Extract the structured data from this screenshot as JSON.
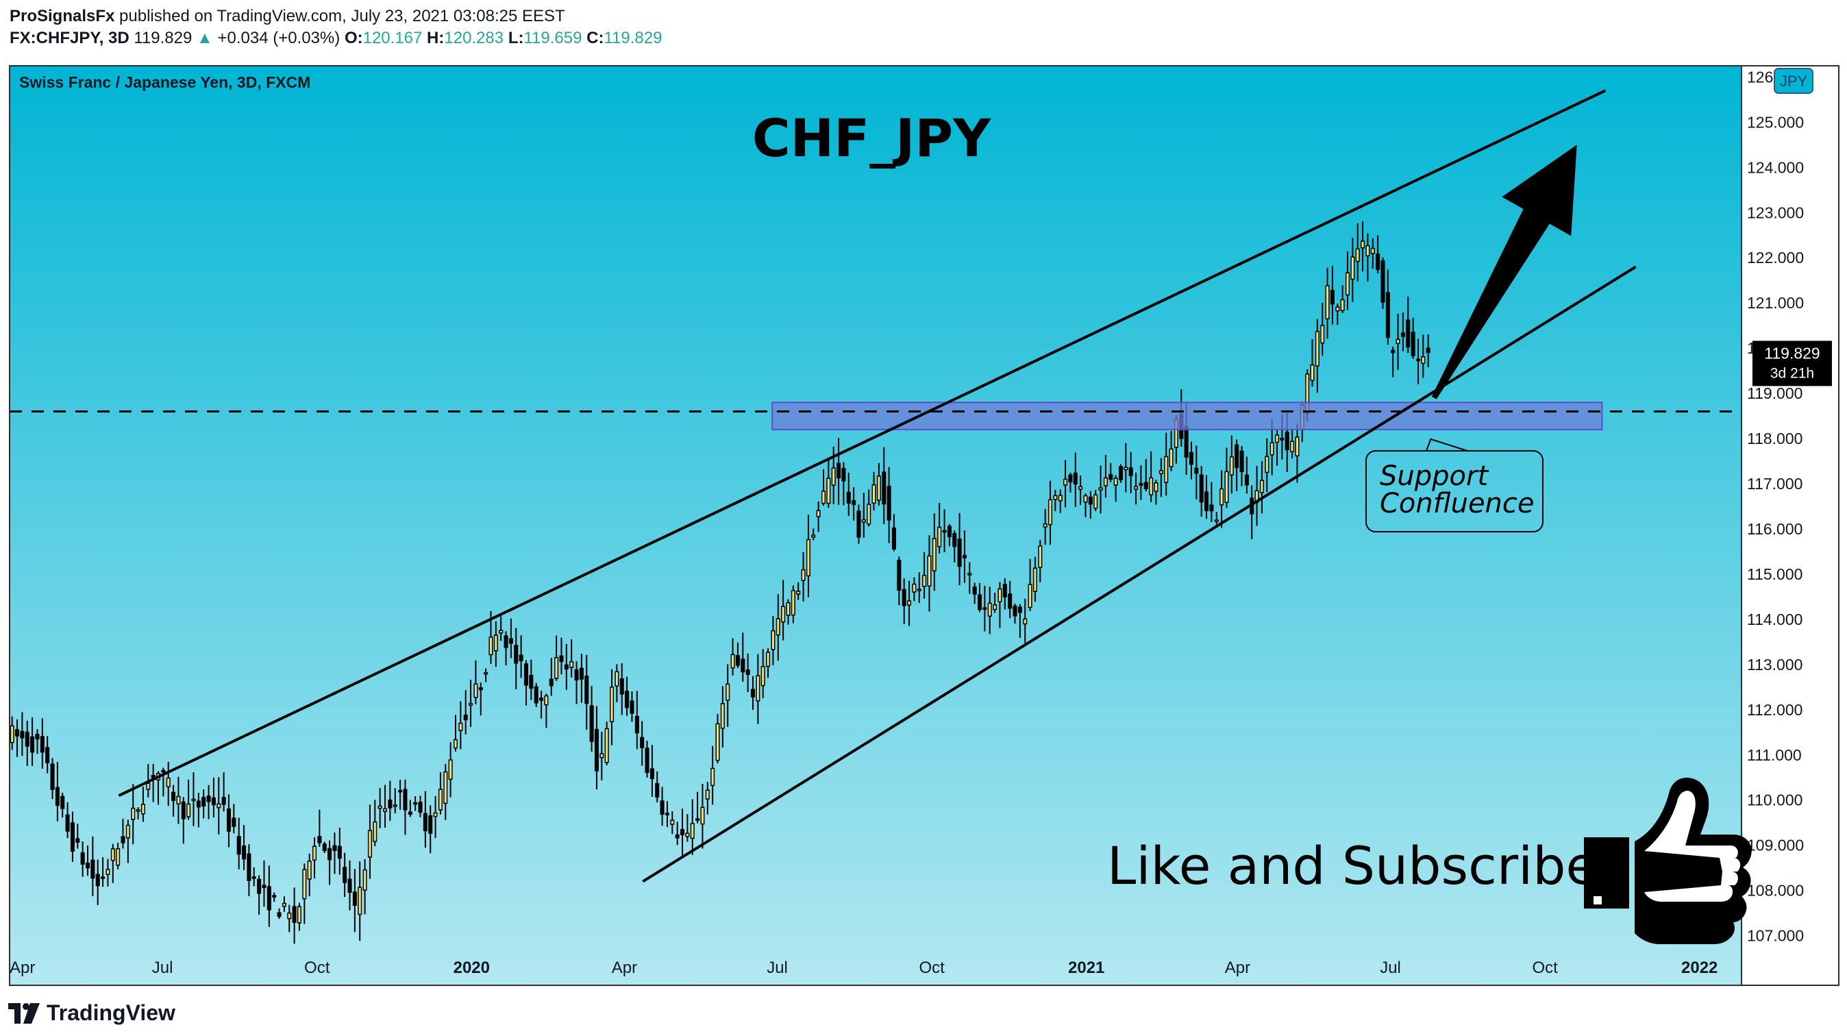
{
  "header": {
    "author": "ProSignalsFx",
    "published_text": "published on TradingView.com, July 23, 2021 03:08:25 EEST",
    "symbol": "FX:CHFJPY, 3D",
    "last": "119.829",
    "change_arrow": "▲",
    "change": "+0.034 (+0.03%)",
    "o_label": "O:",
    "o_value": "120.167",
    "h_label": "H:",
    "h_value": "120.283",
    "l_label": "L:",
    "l_value": "119.659",
    "c_label": "C:",
    "c_value": "119.829"
  },
  "chart_data": {
    "type": "candlestick",
    "title": "CHF_JPY",
    "subtitle": "Swiss Franc / Japanese Yen, 3D, FXCM",
    "currency_badge": "JPY",
    "ylim": [
      106.6,
      126.4
    ],
    "y_ticks": [
      107,
      108,
      109,
      110,
      111,
      112,
      113,
      114,
      115,
      116,
      117,
      118,
      119,
      120,
      121,
      122,
      123,
      124,
      125,
      126
    ],
    "y_tick_labels": [
      "107.000",
      "108.000",
      "109.000",
      "110.000",
      "111.000",
      "112.000",
      "113.000",
      "114.000",
      "115.000",
      "116.000",
      "117.000",
      "118.000",
      "119.000",
      "120.000",
      "121.000",
      "122.000",
      "123.000",
      "124.000",
      "125.000",
      "126.000"
    ],
    "x_range": [
      "2019-04-01",
      "2022-01-26"
    ],
    "x_ticks": [
      {
        "date": "2019-04-01",
        "label": "Apr",
        "bold": false
      },
      {
        "date": "2019-07-01",
        "label": "Jul",
        "bold": false
      },
      {
        "date": "2019-10-01",
        "label": "Oct",
        "bold": false
      },
      {
        "date": "2020-01-01",
        "label": "2020",
        "bold": true
      },
      {
        "date": "2020-04-01",
        "label": "Apr",
        "bold": false
      },
      {
        "date": "2020-07-01",
        "label": "Jul",
        "bold": false
      },
      {
        "date": "2020-10-01",
        "label": "Oct",
        "bold": false
      },
      {
        "date": "2021-01-01",
        "label": "2021",
        "bold": true
      },
      {
        "date": "2021-04-01",
        "label": "Apr",
        "bold": false
      },
      {
        "date": "2021-07-01",
        "label": "Jul",
        "bold": false
      },
      {
        "date": "2021-10-01",
        "label": "Oct",
        "bold": false
      },
      {
        "date": "2022-01-01",
        "label": "2022",
        "bold": true
      }
    ],
    "last_price": 119.829,
    "last_price_label": "119.829",
    "countdown_label": "3d 21h",
    "colors": {
      "bg_top": "#00b5d4",
      "bg_bottom": "#b3e8f1",
      "up_candle": "#f0e27a",
      "down_candle": "#000000",
      "zone_fill": "#6f7fd8",
      "zone_stroke": "#5b4ec8"
    },
    "anchors": [
      [
        "2019-04-01",
        111.5
      ],
      [
        "2019-04-20",
        111.2
      ],
      [
        "2019-05-08",
        109.2
      ],
      [
        "2019-05-25",
        108.1
      ],
      [
        "2019-06-12",
        109.4
      ],
      [
        "2019-06-28",
        110.7
      ],
      [
        "2019-07-15",
        109.8
      ],
      [
        "2019-08-05",
        110.0
      ],
      [
        "2019-08-28",
        108.0
      ],
      [
        "2019-09-20",
        107.3
      ],
      [
        "2019-09-30",
        109.2
      ],
      [
        "2019-10-15",
        108.7
      ],
      [
        "2019-10-25",
        107.5
      ],
      [
        "2019-11-05",
        109.6
      ],
      [
        "2019-11-20",
        110.1
      ],
      [
        "2019-12-10",
        109.4
      ],
      [
        "2019-12-25",
        111.6
      ],
      [
        "2020-01-08",
        112.6
      ],
      [
        "2020-01-18",
        114.0
      ],
      [
        "2020-01-30",
        113.0
      ],
      [
        "2020-02-12",
        112.2
      ],
      [
        "2020-02-25",
        113.2
      ],
      [
        "2020-03-08",
        112.6
      ],
      [
        "2020-03-18",
        110.6
      ],
      [
        "2020-03-28",
        112.8
      ],
      [
        "2020-04-08",
        111.7
      ],
      [
        "2020-04-20",
        110.3
      ],
      [
        "2020-05-01",
        109.4
      ],
      [
        "2020-05-10",
        109.1
      ],
      [
        "2020-05-22",
        110.2
      ],
      [
        "2020-06-05",
        113.2
      ],
      [
        "2020-06-18",
        112.4
      ],
      [
        "2020-07-02",
        113.9
      ],
      [
        "2020-07-14",
        114.6
      ],
      [
        "2020-07-25",
        116.2
      ],
      [
        "2020-08-06",
        117.5
      ],
      [
        "2020-08-20",
        116.0
      ],
      [
        "2020-09-02",
        117.2
      ],
      [
        "2020-09-15",
        114.4
      ],
      [
        "2020-09-28",
        114.8
      ],
      [
        "2020-10-08",
        116.1
      ],
      [
        "2020-10-22",
        115.2
      ],
      [
        "2020-11-01",
        114.2
      ],
      [
        "2020-11-12",
        114.6
      ],
      [
        "2020-11-26",
        114.0
      ],
      [
        "2020-12-08",
        116.2
      ],
      [
        "2020-12-22",
        117.1
      ],
      [
        "2021-01-05",
        116.6
      ],
      [
        "2021-01-20",
        117.3
      ],
      [
        "2021-02-05",
        116.9
      ],
      [
        "2021-02-18",
        117.3
      ],
      [
        "2021-02-26",
        118.5
      ],
      [
        "2021-03-08",
        117.1
      ],
      [
        "2021-03-20",
        116.2
      ],
      [
        "2021-03-31",
        117.8
      ],
      [
        "2021-04-12",
        116.4
      ],
      [
        "2021-04-24",
        118.2
      ],
      [
        "2021-05-06",
        117.8
      ],
      [
        "2021-05-15",
        119.4
      ],
      [
        "2021-05-26",
        121.2
      ],
      [
        "2021-06-03",
        120.8
      ],
      [
        "2021-06-10",
        122.0
      ],
      [
        "2021-06-18",
        122.3
      ],
      [
        "2021-06-26",
        121.9
      ],
      [
        "2021-07-02",
        119.8
      ],
      [
        "2021-07-10",
        120.4
      ],
      [
        "2021-07-18",
        119.7
      ],
      [
        "2021-07-24",
        119.829
      ]
    ],
    "channel": {
      "upper": {
        "from": [
          "2019-06-05",
          110.1
        ],
        "to": [
          "2021-11-06",
          125.7
        ]
      },
      "lower": {
        "from": [
          "2020-04-12",
          108.2
        ],
        "to": [
          "2021-11-24",
          121.8
        ]
      }
    },
    "support_level": 118.6,
    "support_zone": {
      "from": "2020-06-28",
      "to": "2021-11-04",
      "y_low": 118.2,
      "y_high": 118.8
    },
    "arrow": {
      "from": [
        "2021-07-27",
        118.9
      ],
      "to": [
        "2021-10-20",
        124.5
      ]
    },
    "annotation_text": [
      "Support",
      "Confluence"
    ],
    "cta_text": "Like and Subscribe"
  },
  "footer": {
    "brand": "TradingView"
  }
}
